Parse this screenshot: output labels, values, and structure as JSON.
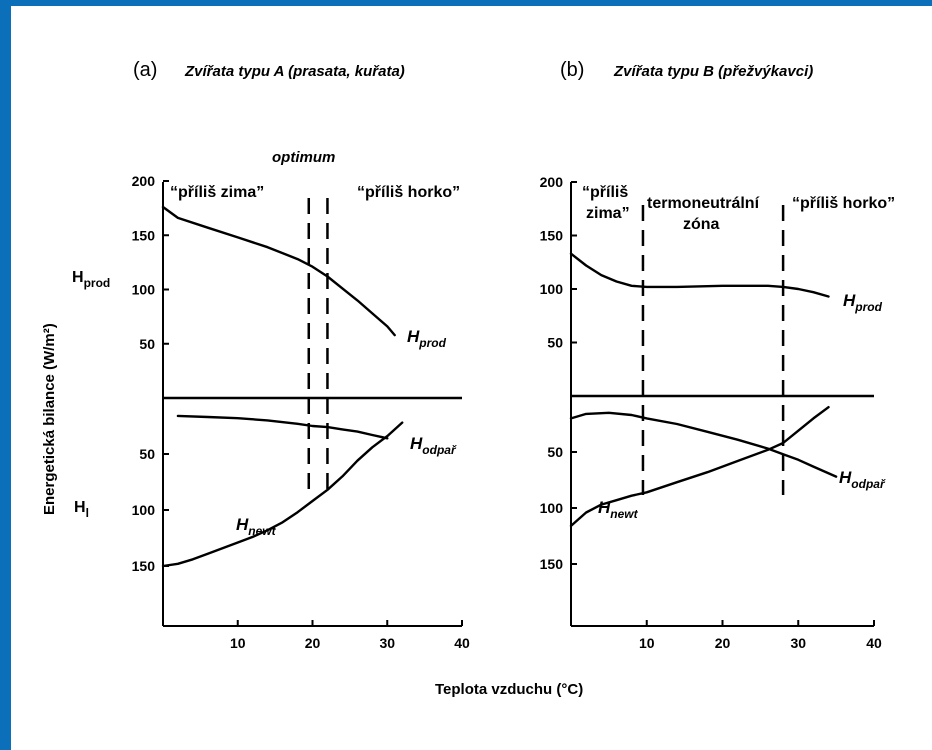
{
  "colors": {
    "frame": "#0b6fba",
    "ink": "#000000"
  },
  "y_axis_label": "Energetická bilance (W/m²)",
  "x_axis_label": "Teplota vzduchu (°C)",
  "chart_data": [
    {
      "type": "line",
      "panel": "(a)",
      "title": "Zvířata typu A (prasata, kuřata)",
      "xlim": [
        0,
        40
      ],
      "x_ticks": [
        10,
        20,
        30,
        40
      ],
      "upper_ylim": [
        0,
        200
      ],
      "upper_ticks": [
        50,
        100,
        150,
        200
      ],
      "lower_ylim": [
        0,
        200
      ],
      "lower_ticks": [
        50,
        100,
        150
      ],
      "upper_axis_label": "Hprod",
      "lower_axis_label": "Hl",
      "zone_lines_x": [
        19.5,
        22
      ],
      "annotations": [
        "optimum",
        "“příliš zima”",
        "“příliš horko”"
      ],
      "series": [
        {
          "name": "Hprod",
          "panel": "upper",
          "x": [
            0,
            2,
            6,
            10,
            14,
            18,
            20,
            22,
            24,
            26,
            28,
            30,
            31
          ],
          "values": [
            176,
            166,
            157,
            148,
            139,
            128,
            121,
            112,
            101,
            90,
            78,
            66,
            58
          ]
        },
        {
          "name": "Hodpař",
          "panel": "lower",
          "x": [
            2,
            6,
            10,
            14,
            18,
            20,
            22,
            24,
            26,
            28,
            30
          ],
          "values": [
            16,
            17,
            18,
            20,
            23,
            25,
            26,
            28,
            30,
            33,
            36
          ]
        },
        {
          "name": "Hnewt",
          "panel": "lower",
          "x": [
            0,
            2,
            4,
            6,
            8,
            10,
            12,
            14,
            16,
            18,
            20,
            22,
            24,
            26,
            28,
            30,
            32
          ],
          "values": [
            150,
            148,
            144,
            139,
            134,
            129,
            124,
            118,
            111,
            102,
            92,
            82,
            70,
            56,
            44,
            34,
            22
          ]
        }
      ]
    },
    {
      "type": "line",
      "panel": "(b)",
      "title": "Zvířata typu B (přežvýkavci)",
      "xlim": [
        0,
        40
      ],
      "x_ticks": [
        10,
        20,
        30,
        40
      ],
      "upper_ylim": [
        0,
        200
      ],
      "upper_ticks": [
        50,
        100,
        150,
        200
      ],
      "lower_ylim": [
        0,
        200
      ],
      "lower_ticks": [
        50,
        100,
        150
      ],
      "zone_lines_x": [
        9.5,
        28
      ],
      "annotations": [
        "“příliš",
        "zima”",
        "termoneutrální",
        "zóna",
        "“příliš horko”"
      ],
      "series": [
        {
          "name": "Hprod",
          "panel": "upper",
          "x": [
            0,
            2,
            4,
            6,
            8,
            10,
            14,
            20,
            26,
            28,
            30,
            32,
            34
          ],
          "values": [
            133,
            122,
            113,
            107,
            103,
            102,
            102,
            103,
            103,
            102,
            100,
            97,
            93
          ]
        },
        {
          "name": "Hodpař",
          "panel": "lower",
          "x": [
            0,
            2,
            5,
            8,
            10,
            14,
            18,
            22,
            26,
            28,
            30,
            32,
            35
          ],
          "values": [
            20,
            16,
            15,
            17,
            20,
            25,
            32,
            39,
            47,
            52,
            57,
            63,
            72
          ]
        },
        {
          "name": "Hnewt",
          "panel": "lower",
          "x": [
            0,
            2,
            4,
            6,
            8,
            10,
            14,
            18,
            22,
            26,
            28,
            30,
            32,
            34
          ],
          "values": [
            116,
            104,
            97,
            93,
            89,
            86,
            77,
            68,
            58,
            48,
            42,
            31,
            20,
            10
          ]
        }
      ]
    }
  ]
}
